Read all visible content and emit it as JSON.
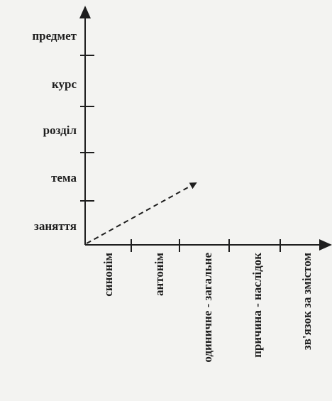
{
  "vertical_axis": {
    "labels": [
      "предмет",
      "курс",
      "розділ",
      "тема",
      "заняття"
    ]
  },
  "horizontal_axis": {
    "labels": [
      "синонім",
      "антонім",
      "одиничне - загальне",
      "причина - наслідок",
      "зв'язок за змістом"
    ]
  }
}
